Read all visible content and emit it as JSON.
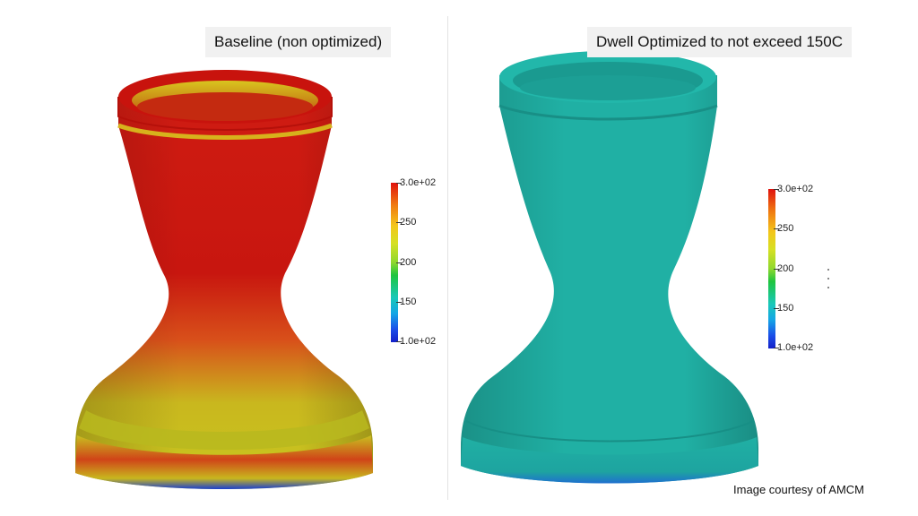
{
  "left_panel": {
    "caption": "Baseline (non optimized)",
    "colorbar": {
      "ticks": [
        "3.0e+02",
        "250",
        "200",
        "150",
        "1.0e+02"
      ],
      "colors": [
        "#e0120e",
        "#f3c61a",
        "#1ec53f",
        "#15a6e6",
        "#1420c8"
      ]
    },
    "colors": {
      "main": "#c81a10",
      "lower": "#c4c21c",
      "base_edge": "#1a3fd0"
    }
  },
  "right_panel": {
    "caption": "Dwell Optimized to not exceed 150C",
    "colorbar": {
      "ticks": [
        "3.0e+02",
        "250",
        "200",
        "150",
        "1.0e+02"
      ],
      "colors": [
        "#e0120e",
        "#f3c61a",
        "#1ec53f",
        "#15a6e6",
        "#1420c8"
      ]
    },
    "colors": {
      "main": "#20b0a4",
      "base_edge": "#1f6fd0"
    }
  },
  "credit": "Image courtesy of AMCM"
}
